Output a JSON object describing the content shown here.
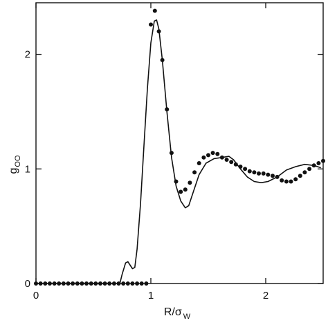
{
  "chart_data": {
    "type": "line",
    "xlabel": {
      "main": "R/σ",
      "sub": "W"
    },
    "ylabel": {
      "main": "g",
      "sub": "OO"
    },
    "xlim": [
      0,
      2.5
    ],
    "ylim": [
      0,
      2.45
    ],
    "x_ticks": [
      0,
      1,
      2
    ],
    "x_tick_labels": [
      "0",
      "1",
      "2"
    ],
    "y_ticks": [
      0,
      1,
      2
    ],
    "y_tick_labels": [
      "0",
      "1",
      "2"
    ],
    "grid": false,
    "legend": "none",
    "series": [
      {
        "style": "solid-line",
        "color": "#111111",
        "points": [
          [
            0.0,
            0.0
          ],
          [
            0.7,
            0.0
          ],
          [
            0.73,
            0.0
          ],
          [
            0.75,
            0.08
          ],
          [
            0.78,
            0.18
          ],
          [
            0.8,
            0.19
          ],
          [
            0.82,
            0.16
          ],
          [
            0.84,
            0.13
          ],
          [
            0.86,
            0.14
          ],
          [
            0.88,
            0.3
          ],
          [
            0.91,
            0.7
          ],
          [
            0.94,
            1.2
          ],
          [
            0.97,
            1.7
          ],
          [
            1.0,
            2.1
          ],
          [
            1.03,
            2.29
          ],
          [
            1.05,
            2.3
          ],
          [
            1.07,
            2.22
          ],
          [
            1.1,
            1.95
          ],
          [
            1.14,
            1.5
          ],
          [
            1.18,
            1.1
          ],
          [
            1.22,
            0.85
          ],
          [
            1.26,
            0.72
          ],
          [
            1.3,
            0.66
          ],
          [
            1.33,
            0.68
          ],
          [
            1.37,
            0.8
          ],
          [
            1.42,
            0.95
          ],
          [
            1.48,
            1.05
          ],
          [
            1.55,
            1.09
          ],
          [
            1.62,
            1.1
          ],
          [
            1.68,
            1.11
          ],
          [
            1.72,
            1.08
          ],
          [
            1.78,
            1.0
          ],
          [
            1.84,
            0.93
          ],
          [
            1.9,
            0.89
          ],
          [
            1.96,
            0.88
          ],
          [
            2.02,
            0.89
          ],
          [
            2.1,
            0.93
          ],
          [
            2.18,
            0.99
          ],
          [
            2.26,
            1.02
          ],
          [
            2.34,
            1.04
          ],
          [
            2.42,
            1.03
          ],
          [
            2.48,
            1.01
          ]
        ]
      },
      {
        "style": "filled-circles",
        "color": "#111111",
        "points": [
          [
            0.0,
            0.0
          ],
          [
            0.04,
            0.0
          ],
          [
            0.08,
            0.0
          ],
          [
            0.12,
            0.0
          ],
          [
            0.16,
            0.0
          ],
          [
            0.2,
            0.0
          ],
          [
            0.24,
            0.0
          ],
          [
            0.28,
            0.0
          ],
          [
            0.32,
            0.0
          ],
          [
            0.36,
            0.0
          ],
          [
            0.4,
            0.0
          ],
          [
            0.44,
            0.0
          ],
          [
            0.48,
            0.0
          ],
          [
            0.52,
            0.0
          ],
          [
            0.56,
            0.0
          ],
          [
            0.6,
            0.0
          ],
          [
            0.64,
            0.0
          ],
          [
            0.68,
            0.0
          ],
          [
            0.72,
            0.0
          ],
          [
            0.76,
            0.0
          ],
          [
            0.8,
            0.0
          ],
          [
            0.84,
            0.0
          ],
          [
            0.88,
            0.0
          ],
          [
            0.92,
            0.0
          ],
          [
            0.96,
            0.0
          ],
          [
            1.0,
            2.26
          ],
          [
            1.035,
            2.38
          ],
          [
            1.07,
            2.2
          ],
          [
            1.1,
            1.95
          ],
          [
            1.14,
            1.52
          ],
          [
            1.18,
            1.14
          ],
          [
            1.22,
            0.89
          ],
          [
            1.26,
            0.8
          ],
          [
            1.3,
            0.82
          ],
          [
            1.34,
            0.88
          ],
          [
            1.38,
            0.97
          ],
          [
            1.42,
            1.05
          ],
          [
            1.46,
            1.1
          ],
          [
            1.5,
            1.12
          ],
          [
            1.54,
            1.14
          ],
          [
            1.58,
            1.13
          ],
          [
            1.62,
            1.1
          ],
          [
            1.66,
            1.08
          ],
          [
            1.7,
            1.06
          ],
          [
            1.74,
            1.04
          ],
          [
            1.78,
            1.02
          ],
          [
            1.82,
            1.0
          ],
          [
            1.86,
            0.98
          ],
          [
            1.9,
            0.97
          ],
          [
            1.94,
            0.96
          ],
          [
            1.98,
            0.96
          ],
          [
            2.02,
            0.95
          ],
          [
            2.06,
            0.94
          ],
          [
            2.1,
            0.93
          ],
          [
            2.14,
            0.9
          ],
          [
            2.18,
            0.89
          ],
          [
            2.22,
            0.89
          ],
          [
            2.26,
            0.91
          ],
          [
            2.3,
            0.94
          ],
          [
            2.34,
            0.97
          ],
          [
            2.38,
            1.0
          ],
          [
            2.42,
            1.03
          ],
          [
            2.46,
            1.05
          ],
          [
            2.5,
            1.07
          ]
        ]
      }
    ]
  }
}
